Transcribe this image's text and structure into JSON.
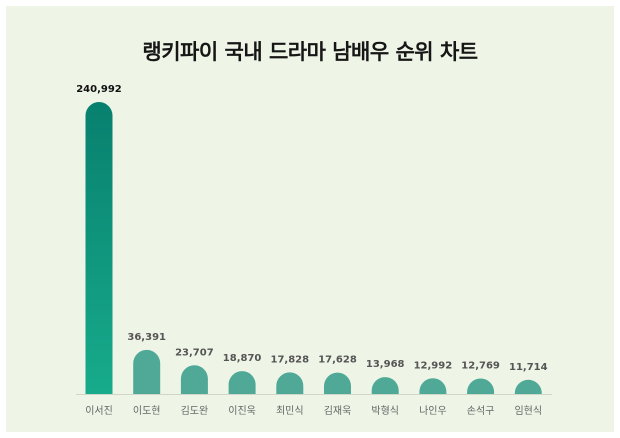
{
  "chart_data": {
    "type": "bar",
    "title": "랭키파이 국내 드라마 남배우 순위 차트",
    "categories": [
      "이서진",
      "이도현",
      "김도완",
      "이진욱",
      "최민식",
      "김재욱",
      "박형식",
      "나인우",
      "손석구",
      "임현식"
    ],
    "values": [
      240992,
      36391,
      23707,
      18870,
      17828,
      17628,
      13968,
      12992,
      12769,
      11714
    ],
    "value_labels": [
      "240,992",
      "36,391",
      "23,707",
      "18,870",
      "17,828",
      "17,628",
      "13,968",
      "12,992",
      "12,769",
      "11,714"
    ],
    "xlabel": "",
    "ylabel": "",
    "ylim": [
      0,
      240992
    ],
    "grid": false,
    "colors": {
      "highlight_top": "#08806f",
      "highlight_bottom": "#17ab8b",
      "bar": "#4fa996",
      "background": "#eef5e7",
      "baseline": "#cfd6ca"
    }
  }
}
